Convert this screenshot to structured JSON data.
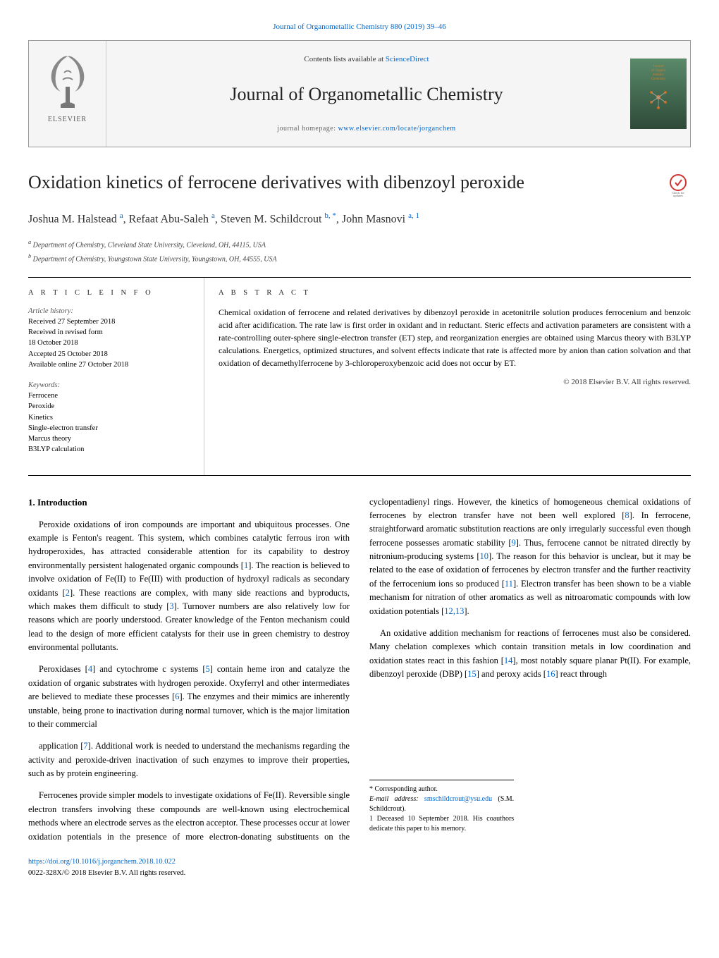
{
  "top_citation": "Journal of Organometallic Chemistry 880 (2019) 39–46",
  "header": {
    "contents_prefix": "Contents lists available at ",
    "contents_link": "ScienceDirect",
    "journal_title": "Journal of Organometallic Chemistry",
    "homepage_prefix": "journal homepage: ",
    "homepage_link": "www.elsevier.com/locate/jorganchem",
    "publisher_label": "ELSEVIER",
    "cover_label": "Journal of Organometallic Chemistry",
    "cover_colors": {
      "bg_top": "#5a8a6a",
      "bg_bottom": "#2d4a38",
      "accent": "#d47a2a"
    }
  },
  "check_badge_label": "Check for updates",
  "title": "Oxidation kinetics of ferrocene derivatives with dibenzoyl peroxide",
  "authors_html": "Joshua M. Halstead <sup>a</sup>, Refaat Abu-Saleh <sup>a</sup>, Steven M. Schildcrout <sup>b, *</sup>, John Masnovi <sup>a, 1</sup>",
  "affiliations": [
    {
      "marker": "a",
      "text": "Department of Chemistry, Cleveland State University, Cleveland, OH, 44115, USA"
    },
    {
      "marker": "b",
      "text": "Department of Chemistry, Youngstown State University, Youngstown, OH, 44555, USA"
    }
  ],
  "article_info": {
    "label": "A R T I C L E   I N F O",
    "history_label": "Article history:",
    "history": [
      "Received 27 September 2018",
      "Received in revised form",
      "18 October 2018",
      "Accepted 25 October 2018",
      "Available online 27 October 2018"
    ],
    "keywords_label": "Keywords:",
    "keywords": [
      "Ferrocene",
      "Peroxide",
      "Kinetics",
      "Single-electron transfer",
      "Marcus theory",
      "B3LYP calculation"
    ]
  },
  "abstract": {
    "label": "A B S T R A C T",
    "text": "Chemical oxidation of ferrocene and related derivatives by dibenzoyl peroxide in acetonitrile solution produces ferrocenium and benzoic acid after acidification. The rate law is first order in oxidant and in reductant. Steric effects and activation parameters are consistent with a rate-controlling outer-sphere single-electron transfer (ET) step, and reorganization energies are obtained using Marcus theory with B3LYP calculations. Energetics, optimized structures, and solvent effects indicate that rate is affected more by anion than cation solvation and that oxidation of decamethylferrocene by 3-chloroperoxybenzoic acid does not occur by ET.",
    "copyright": "© 2018 Elsevier B.V. All rights reserved."
  },
  "introduction": {
    "heading": "1. Introduction",
    "paragraphs": [
      "Peroxide oxidations of iron compounds are important and ubiquitous processes. One example is Fenton's reagent. This system, which combines catalytic ferrous iron with hydroperoxides, has attracted considerable attention for its capability to destroy environmentally persistent halogenated organic compounds [1]. The reaction is believed to involve oxidation of Fe(II) to Fe(III) with production of hydroxyl radicals as secondary oxidants [2]. These reactions are complex, with many side reactions and byproducts, which makes them difficult to study [3]. Turnover numbers are also relatively low for reasons which are poorly understood. Greater knowledge of the Fenton mechanism could lead to the design of more efficient catalysts for their use in green chemistry to destroy environmental pollutants.",
      "Peroxidases [4] and cytochrome c systems [5] contain heme iron and catalyze the oxidation of organic substrates with hydrogen peroxide. Oxyferryl and other intermediates are believed to mediate these processes [6]. The enzymes and their mimics are inherently unstable, being prone to inactivation during normal turnover, which is the major limitation to their commercial",
      "application [7]. Additional work is needed to understand the mechanisms regarding the activity and peroxide-driven inactivation of such enzymes to improve their properties, such as by protein engineering.",
      "Ferrocenes provide simpler models to investigate oxidations of Fe(II). Reversible single electron transfers involving these compounds are well-known using electrochemical methods where an electrode serves as the electron acceptor. These processes occur at lower oxidation potentials in the presence of more electron-donating substituents on the cyclopentadienyl rings. However, the kinetics of homogeneous chemical oxidations of ferrocenes by electron transfer have not been well explored [8]. In ferrocene, straightforward aromatic substitution reactions are only irregularly successful even though ferrocene possesses aromatic stability [9]. Thus, ferrocene cannot be nitrated directly by nitronium-producing systems [10]. The reason for this behavior is unclear, but it may be related to the ease of oxidation of ferrocenes by electron transfer and the further reactivity of the ferrocenium ions so produced [11]. Electron transfer has been shown to be a viable mechanism for nitration of other aromatics as well as nitroaromatic compounds with low oxidation potentials [12,13].",
      "An oxidative addition mechanism for reactions of ferrocenes must also be considered. Many chelation complexes which contain transition metals in low coordination and oxidation states react in this fashion [14], most notably square planar Pt(II). For example, dibenzoyl peroxide (DBP) [15] and peroxy acids [16] react through"
    ]
  },
  "footer": {
    "corresponding": "* Corresponding author.",
    "email_prefix": "E-mail address: ",
    "email": "smschildcrout@ysu.edu",
    "email_suffix": " (S.M. Schildcrout).",
    "deceased": "1 Deceased 10 September 2018. His coauthors dedicate this paper to his memory.",
    "doi": "https://doi.org/10.1016/j.jorganchem.2018.10.022",
    "issn_line": "0022-328X/© 2018 Elsevier B.V. All rights reserved."
  }
}
